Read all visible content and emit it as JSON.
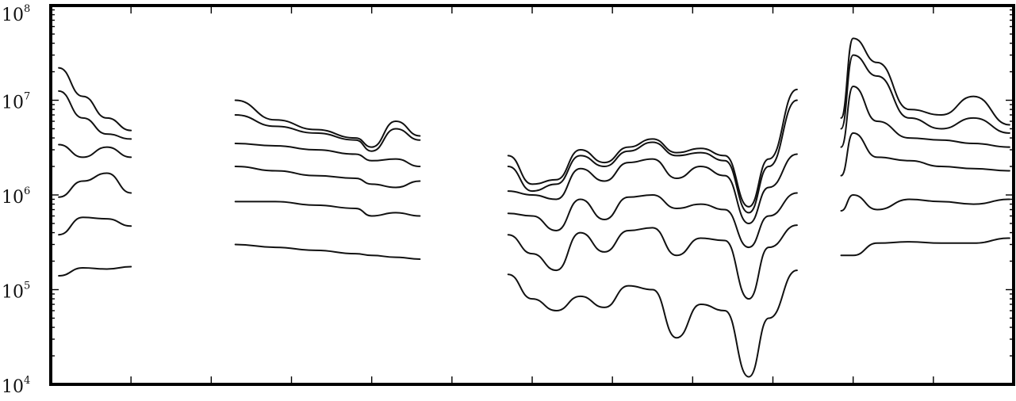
{
  "chart_data": {
    "type": "line",
    "title": "",
    "xlabel": "",
    "ylabel": "",
    "y_scale": "log",
    "ylim": [
      10000,
      100000000
    ],
    "xlim": [
      0,
      12
    ],
    "grid": false,
    "legend": "none",
    "y_ticks": [
      {
        "base": "10",
        "exp": "4",
        "value": 10000
      },
      {
        "base": "10",
        "exp": "5",
        "value": 100000
      },
      {
        "base": "10",
        "exp": "6",
        "value": 1000000
      },
      {
        "base": "10",
        "exp": "7",
        "value": 10000000
      },
      {
        "base": "10",
        "exp": "8",
        "value": 100000000
      }
    ],
    "x_major_ticks": [
      1,
      2,
      3,
      4,
      5,
      6,
      7,
      8,
      9,
      10,
      11
    ],
    "series_groups": [
      {
        "name": "",
        "x": [
          0.1,
          0.4,
          0.7,
          1.0
        ],
        "series": [
          {
            "values": [
              22000000,
              11000000,
              6500000,
              4800000
            ]
          },
          {
            "values": [
              12500000,
              6500000,
              4400000,
              3900000
            ]
          },
          {
            "values": [
              3400000,
              2500000,
              3200000,
              2500000
            ]
          },
          {
            "values": [
              950000,
              1400000,
              1700000,
              1050000
            ]
          },
          {
            "values": [
              380000,
              580000,
              560000,
              470000
            ]
          },
          {
            "values": [
              140000,
              170000,
              165000,
              175000
            ]
          }
        ]
      },
      {
        "name": "",
        "x": [
          2.3,
          2.8,
          3.3,
          3.8,
          4.0,
          4.3,
          4.6
        ],
        "series": [
          {
            "values": [
              10000000,
              6200000,
              4900000,
              4000000,
              3200000,
              6000000,
              4200000
            ]
          },
          {
            "values": [
              7000000,
              5300000,
              4500000,
              3800000,
              2900000,
              5000000,
              3800000
            ]
          },
          {
            "values": [
              3500000,
              3300000,
              3000000,
              2700000,
              2300000,
              2400000,
              2000000
            ]
          },
          {
            "values": [
              2000000,
              1800000,
              1600000,
              1500000,
              1300000,
              1200000,
              1400000
            ]
          },
          {
            "values": [
              850000,
              850000,
              780000,
              720000,
              600000,
              650000,
              600000
            ]
          },
          {
            "values": [
              300000,
              280000,
              260000,
              240000,
              230000,
              220000,
              210000
            ]
          }
        ]
      },
      {
        "name": "",
        "x": [
          5.7,
          6.0,
          6.3,
          6.6,
          6.9,
          7.2,
          7.5,
          7.8,
          8.1,
          8.4,
          8.7,
          8.95,
          9.3
        ],
        "series": [
          {
            "values": [
              2600000,
              1300000,
              1450000,
              3000000,
              2200000,
              3200000,
              3900000,
              2800000,
              3100000,
              2600000,
              750000,
              2400000,
              13000000
            ]
          },
          {
            "values": [
              2000000,
              1100000,
              1300000,
              2600000,
              2000000,
              2900000,
              3600000,
              2600000,
              2800000,
              2300000,
              650000,
              2000000,
              10000000
            ]
          },
          {
            "values": [
              1100000,
              1000000,
              900000,
              1900000,
              1400000,
              2200000,
              2400000,
              1500000,
              2000000,
              1600000,
              500000,
              1200000,
              2700000
            ]
          },
          {
            "values": [
              640000,
              600000,
              420000,
              900000,
              550000,
              950000,
              1000000,
              720000,
              800000,
              700000,
              280000,
              600000,
              1050000
            ]
          },
          {
            "values": [
              380000,
              240000,
              160000,
              400000,
              250000,
              420000,
              450000,
              230000,
              350000,
              330000,
              80000,
              280000,
              480000
            ]
          },
          {
            "values": [
              145000,
              80000,
              60000,
              85000,
              65000,
              110000,
              100000,
              31000,
              70000,
              60000,
              12000,
              50000,
              160000
            ]
          }
        ]
      },
      {
        "name": "",
        "x": [
          9.85,
          10.0,
          10.3,
          10.7,
          11.1,
          11.5,
          11.95
        ],
        "series": [
          {
            "values": [
              6500000,
              45000000,
              25000000,
              8000000,
              7000000,
              11000000,
              5500000
            ]
          },
          {
            "values": [
              5000000,
              30000000,
              18000000,
              6500000,
              5000000,
              6500000,
              4500000
            ]
          },
          {
            "values": [
              3200000,
              14000000,
              6000000,
              4000000,
              3800000,
              3500000,
              3200000
            ]
          },
          {
            "values": [
              1600000,
              4500000,
              2500000,
              2300000,
              2000000,
              1900000,
              1800000
            ]
          },
          {
            "values": [
              680000,
              1000000,
              700000,
              900000,
              850000,
              800000,
              900000
            ]
          },
          {
            "values": [
              230000,
              230000,
              310000,
              320000,
              310000,
              310000,
              350000
            ]
          }
        ]
      }
    ]
  }
}
